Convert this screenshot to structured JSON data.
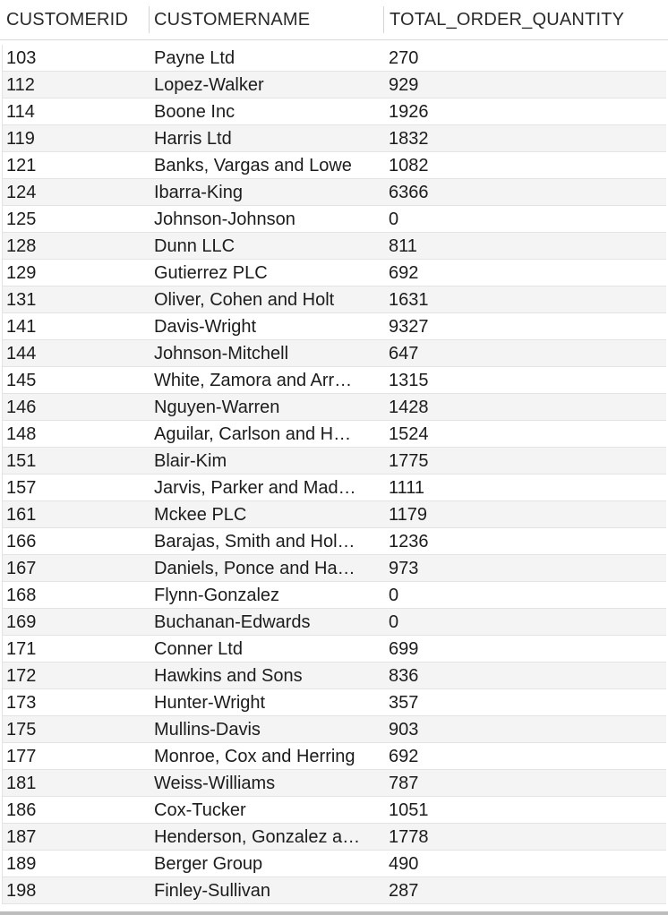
{
  "table": {
    "columns": [
      "CUSTOMERID",
      "CUSTOMERNAME",
      "TOTAL_ORDER_QUANTITY"
    ],
    "rows": [
      {
        "id": "103",
        "name": "Payne Ltd",
        "qty": "270"
      },
      {
        "id": "112",
        "name": "Lopez-Walker",
        "qty": "929"
      },
      {
        "id": "114",
        "name": "Boone Inc",
        "qty": "1926"
      },
      {
        "id": "119",
        "name": "Harris Ltd",
        "qty": "1832"
      },
      {
        "id": "121",
        "name": "Banks, Vargas and Lowe",
        "qty": "1082"
      },
      {
        "id": "124",
        "name": "Ibarra-King",
        "qty": "6366"
      },
      {
        "id": "125",
        "name": "Johnson-Johnson",
        "qty": "0"
      },
      {
        "id": "128",
        "name": "Dunn LLC",
        "qty": "811"
      },
      {
        "id": "129",
        "name": "Gutierrez PLC",
        "qty": "692"
      },
      {
        "id": "131",
        "name": "Oliver, Cohen and Holt",
        "qty": "1631"
      },
      {
        "id": "141",
        "name": "Davis-Wright",
        "qty": "9327"
      },
      {
        "id": "144",
        "name": "Johnson-Mitchell",
        "qty": "647"
      },
      {
        "id": "145",
        "name": "White, Zamora and Arr…",
        "qty": "1315"
      },
      {
        "id": "146",
        "name": "Nguyen-Warren",
        "qty": "1428"
      },
      {
        "id": "148",
        "name": "Aguilar, Carlson and H…",
        "qty": "1524"
      },
      {
        "id": "151",
        "name": "Blair-Kim",
        "qty": "1775"
      },
      {
        "id": "157",
        "name": "Jarvis, Parker and Mad…",
        "qty": "1111"
      },
      {
        "id": "161",
        "name": "Mckee PLC",
        "qty": "1179"
      },
      {
        "id": "166",
        "name": "Barajas, Smith and Hol…",
        "qty": "1236"
      },
      {
        "id": "167",
        "name": "Daniels, Ponce and Ha…",
        "qty": "973"
      },
      {
        "id": "168",
        "name": "Flynn-Gonzalez",
        "qty": "0"
      },
      {
        "id": "169",
        "name": "Buchanan-Edwards",
        "qty": "0"
      },
      {
        "id": "171",
        "name": "Conner Ltd",
        "qty": "699"
      },
      {
        "id": "172",
        "name": "Hawkins and Sons",
        "qty": "836"
      },
      {
        "id": "173",
        "name": "Hunter-Wright",
        "qty": "357"
      },
      {
        "id": "175",
        "name": "Mullins-Davis",
        "qty": "903"
      },
      {
        "id": "177",
        "name": "Monroe, Cox and Herring",
        "qty": "692"
      },
      {
        "id": "181",
        "name": "Weiss-Williams",
        "qty": "787"
      },
      {
        "id": "186",
        "name": "Cox-Tucker",
        "qty": "1051"
      },
      {
        "id": "187",
        "name": "Henderson, Gonzalez a…",
        "qty": "1778"
      },
      {
        "id": "189",
        "name": "Berger Group",
        "qty": "490"
      },
      {
        "id": "198",
        "name": "Finley-Sullivan",
        "qty": "287"
      }
    ]
  }
}
